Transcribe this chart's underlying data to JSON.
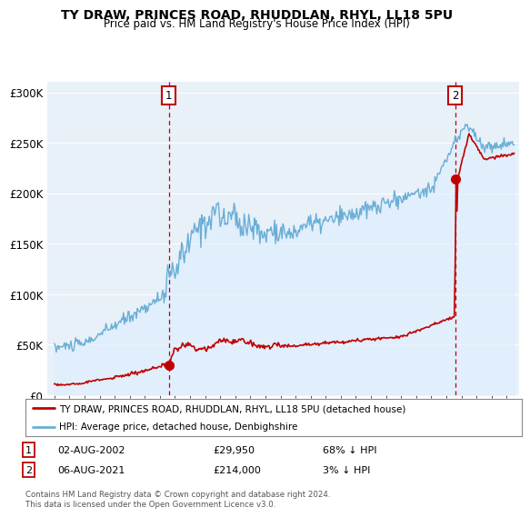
{
  "title": "TY DRAW, PRINCES ROAD, RHUDDLAN, RHYL, LL18 5PU",
  "subtitle": "Price paid vs. HM Land Registry's House Price Index (HPI)",
  "legend_line1": "TY DRAW, PRINCES ROAD, RHUDDLAN, RHYL, LL18 5PU (detached house)",
  "legend_line2": "HPI: Average price, detached house, Denbighshire",
  "footer": "Contains HM Land Registry data © Crown copyright and database right 2024.\nThis data is licensed under the Open Government Licence v3.0.",
  "annotation1_date": "02-AUG-2002",
  "annotation1_price": "£29,950",
  "annotation1_hpi": "68% ↓ HPI",
  "annotation2_date": "06-AUG-2021",
  "annotation2_price": "£214,000",
  "annotation2_hpi": "3% ↓ HPI",
  "hpi_color": "#6aaed6",
  "hpi_fill_color": "#ddeeff",
  "price_color": "#c00000",
  "annotation_color": "#c00000",
  "bg_color": "#ffffff",
  "plot_bg_color": "#e8f0f8",
  "grid_color": "#ffffff",
  "ylim": [
    0,
    310000
  ],
  "yticks": [
    0,
    50000,
    100000,
    150000,
    200000,
    250000,
    300000
  ],
  "ytick_labels": [
    "£0",
    "£50K",
    "£100K",
    "£150K",
    "£200K",
    "£250K",
    "£300K"
  ],
  "point1_x": 2002.58,
  "point1_y": 29950,
  "point2_x": 2021.58,
  "point2_y": 214000,
  "vline1_x": 2002.58,
  "vline2_x": 2021.58,
  "xmin": 1994.5,
  "xmax": 2025.8
}
